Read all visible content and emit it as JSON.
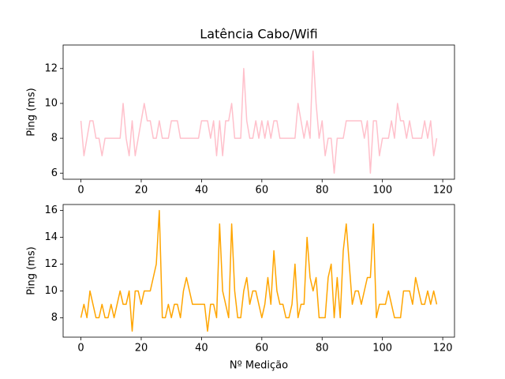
{
  "chart_data": [
    {
      "type": "line",
      "title": "Latência Cabo/Wifi",
      "ylabel": "Ping (ms)",
      "x": [
        0,
        1,
        2,
        3,
        4,
        5,
        6,
        7,
        8,
        9,
        10,
        11,
        12,
        13,
        14,
        15,
        16,
        17,
        18,
        19,
        20,
        21,
        22,
        23,
        24,
        25,
        26,
        27,
        28,
        29,
        30,
        31,
        32,
        33,
        34,
        35,
        36,
        37,
        38,
        39,
        40,
        41,
        42,
        43,
        44,
        45,
        46,
        47,
        48,
        49,
        50,
        51,
        52,
        53,
        54,
        55,
        56,
        57,
        58,
        59,
        60,
        61,
        62,
        63,
        64,
        65,
        66,
        67,
        68,
        69,
        70,
        71,
        72,
        73,
        74,
        75,
        76,
        77,
        78,
        79,
        80,
        81,
        82,
        83,
        84,
        85,
        86,
        87,
        88,
        89,
        90,
        91,
        92,
        93,
        94,
        95,
        96,
        97,
        98,
        99,
        100,
        101,
        102,
        103,
        104,
        105,
        106,
        107,
        108,
        109,
        110,
        111,
        112,
        113,
        114,
        115,
        116,
        117,
        118
      ],
      "values": [
        9,
        7,
        8,
        9,
        9,
        8,
        8,
        7,
        8,
        8,
        8,
        8,
        8,
        8,
        10,
        8,
        7,
        9,
        7,
        8,
        9,
        10,
        9,
        9,
        8,
        8,
        9,
        8,
        8,
        8,
        9,
        9,
        9,
        8,
        8,
        8,
        8,
        8,
        8,
        8,
        9,
        9,
        9,
        8,
        9,
        7,
        9,
        7,
        9,
        9,
        10,
        8,
        8,
        8,
        12,
        9,
        8,
        8,
        9,
        8,
        9,
        8,
        9,
        8,
        9,
        9,
        8,
        8,
        8,
        8,
        8,
        8,
        10,
        9,
        8,
        9,
        8,
        13,
        10,
        8,
        9,
        7,
        8,
        8,
        6,
        8,
        8,
        8,
        9,
        9,
        9,
        9,
        9,
        9,
        8,
        9,
        6,
        9,
        9,
        7,
        8,
        8,
        8,
        9,
        8,
        10,
        9,
        9,
        8,
        9,
        8,
        8,
        8,
        8,
        9,
        8,
        9,
        7,
        8
      ],
      "color": "#ffc0cb",
      "xlim": [
        -5.9,
        123.9
      ],
      "xticks": [
        0,
        20,
        40,
        60,
        80,
        100,
        120
      ],
      "ylim": [
        5.65,
        13.35
      ],
      "yticks": [
        6,
        8,
        10,
        12
      ]
    },
    {
      "type": "line",
      "xlabel": "Nº Medição",
      "ylabel": "Ping (ms)",
      "x": [
        0,
        1,
        2,
        3,
        4,
        5,
        6,
        7,
        8,
        9,
        10,
        11,
        12,
        13,
        14,
        15,
        16,
        17,
        18,
        19,
        20,
        21,
        22,
        23,
        24,
        25,
        26,
        27,
        28,
        29,
        30,
        31,
        32,
        33,
        34,
        35,
        36,
        37,
        38,
        39,
        40,
        41,
        42,
        43,
        44,
        45,
        46,
        47,
        48,
        49,
        50,
        51,
        52,
        53,
        54,
        55,
        56,
        57,
        58,
        59,
        60,
        61,
        62,
        63,
        64,
        65,
        66,
        67,
        68,
        69,
        70,
        71,
        72,
        73,
        74,
        75,
        76,
        77,
        78,
        79,
        80,
        81,
        82,
        83,
        84,
        85,
        86,
        87,
        88,
        89,
        90,
        91,
        92,
        93,
        94,
        95,
        96,
        97,
        98,
        99,
        100,
        101,
        102,
        103,
        104,
        105,
        106,
        107,
        108,
        109,
        110,
        111,
        112,
        113,
        114,
        115,
        116,
        117,
        118
      ],
      "values": [
        8,
        9,
        8,
        10,
        9,
        8,
        8,
        9,
        8,
        8,
        9,
        8,
        9,
        10,
        9,
        9,
        10,
        7,
        10,
        10,
        9,
        10,
        10,
        10,
        11,
        12,
        16,
        8,
        8,
        9,
        8,
        9,
        9,
        8,
        10,
        11,
        10,
        9,
        9,
        9,
        9,
        9,
        7,
        9,
        9,
        8,
        15,
        10,
        9,
        8,
        15,
        10,
        8,
        8,
        10,
        11,
        9,
        10,
        10,
        9,
        8,
        9,
        11,
        9,
        13,
        10,
        9,
        9,
        8,
        8,
        9,
        12,
        8,
        9,
        9,
        14,
        11,
        10,
        11,
        8,
        8,
        8,
        11,
        12,
        8,
        11,
        8,
        13,
        15,
        12,
        9,
        10,
        10,
        9,
        10,
        11,
        11,
        15,
        8,
        9,
        9,
        9,
        10,
        9,
        8,
        8,
        8,
        10,
        10,
        10,
        9,
        11,
        10,
        9,
        9,
        10,
        9,
        10,
        9
      ],
      "color": "#ffa500",
      "xlim": [
        -5.9,
        123.9
      ],
      "xticks": [
        0,
        20,
        40,
        60,
        80,
        100,
        120
      ],
      "ylim": [
        6.55,
        16.45
      ],
      "yticks": [
        8,
        10,
        12,
        14,
        16
      ]
    }
  ]
}
